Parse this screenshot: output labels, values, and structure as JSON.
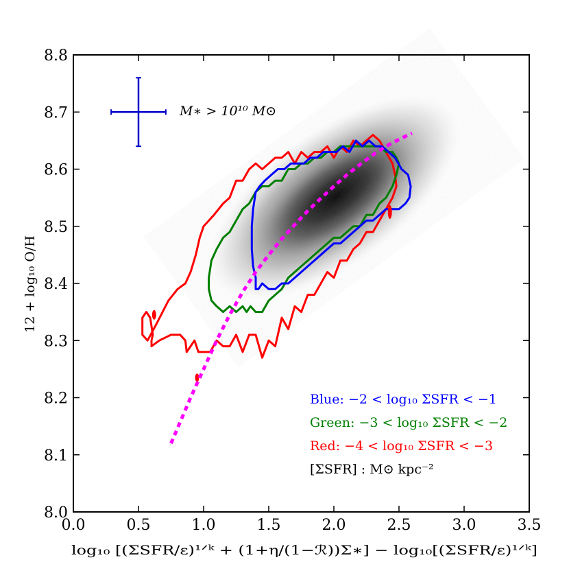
{
  "chart_data": {
    "type": "scatter",
    "title": "",
    "xlabel": "log₁₀ [(ΣSFR/ε)¹ᐟᵏ + (1+η/(1−ℛ))Σ∗] − log₁₀[(ΣSFR/ε)¹ᐟᵏ]",
    "ylabel": "12 + log₁₀ O/H",
    "xlim": [
      0.0,
      3.5
    ],
    "ylim": [
      8.0,
      8.8
    ],
    "x_ticks": [
      0.0,
      0.5,
      1.0,
      1.5,
      2.0,
      2.5,
      3.0,
      3.5
    ],
    "x_tick_labels": [
      "0.0",
      "0.5",
      "1.0",
      "1.5",
      "2.0",
      "2.5",
      "3.0",
      "3.5"
    ],
    "y_ticks": [
      8.0,
      8.1,
      8.2,
      8.3,
      8.4,
      8.5,
      8.6,
      8.7,
      8.8
    ],
    "y_tick_labels": [
      "8.0",
      "8.1",
      "8.2",
      "8.3",
      "8.4",
      "8.5",
      "8.6",
      "8.7",
      "8.8"
    ],
    "grid": false,
    "mass_label": "M∗ > 10¹⁰ M⊙",
    "error_bar": {
      "x": 0.5,
      "y": 8.7,
      "xerr": [
        0.21,
        0.21
      ],
      "yerr": [
        0.06,
        0.06
      ],
      "color": "#0000cc"
    },
    "density": {
      "description_hidden": true,
      "center": [
        2.0,
        8.55
      ],
      "color": "#000000"
    },
    "legend_position": "bottom-right",
    "legend": [
      {
        "prefix": "Blue:",
        "text": "−2 < log₁₀ ΣSFR < −1",
        "color": "#0000ff"
      },
      {
        "prefix": "Green:",
        "text": "−3 < log₁₀ ΣSFR < −2",
        "color": "#007f00"
      },
      {
        "prefix": "Red:",
        "text": "−4 < log₁₀ ΣSFR < −3",
        "color": "#ff0000"
      },
      {
        "prefix": "",
        "text": "[ΣSFR] : M⊙ kpc⁻²",
        "color": "#000000"
      }
    ],
    "model_curve": {
      "color": "#ff00ff",
      "style": "dotted",
      "x": [
        0.75,
        0.9,
        1.0,
        1.1,
        1.2,
        1.3,
        1.4,
        1.5,
        1.6,
        1.7,
        1.8,
        1.9,
        2.0,
        2.1,
        2.2,
        2.3,
        2.4,
        2.5,
        2.6
      ],
      "y": [
        8.12,
        8.2,
        8.25,
        8.3,
        8.345,
        8.385,
        8.42,
        8.45,
        8.478,
        8.503,
        8.527,
        8.549,
        8.57,
        8.59,
        8.608,
        8.625,
        8.64,
        8.652,
        8.663
      ]
    },
    "series": [
      {
        "name": "Red",
        "color": "#ff0000",
        "kind": "contour",
        "x": [
          0.53,
          0.56,
          0.59,
          0.61,
          0.6,
          0.6,
          0.66,
          0.75,
          0.82,
          0.86,
          0.87,
          0.9,
          0.93,
          0.96,
          1.05,
          1.1,
          1.15,
          1.2,
          1.25,
          1.3,
          1.35,
          1.4,
          1.45,
          1.5,
          1.55,
          1.6,
          1.65,
          1.7,
          1.75,
          1.8,
          1.85,
          1.9,
          1.95,
          2.0,
          2.05,
          2.1,
          2.15,
          2.2,
          2.25,
          2.3,
          2.35,
          2.4,
          2.45,
          2.48,
          2.47,
          2.45,
          2.4,
          2.35,
          2.3,
          2.25,
          2.2,
          2.15,
          2.1,
          2.05,
          2.0,
          1.95,
          1.9,
          1.85,
          1.8,
          1.75,
          1.7,
          1.65,
          1.6,
          1.55,
          1.5,
          1.45,
          1.4,
          1.35,
          1.3,
          1.25,
          1.2,
          1.15,
          1.08,
          1.0,
          0.97,
          0.94,
          0.9,
          0.86,
          0.8,
          0.73,
          0.64,
          0.57,
          0.53
        ],
        "y": [
          8.34,
          8.35,
          8.34,
          8.31,
          8.3,
          8.29,
          8.3,
          8.31,
          8.31,
          8.3,
          8.28,
          8.29,
          8.3,
          8.28,
          8.28,
          8.3,
          8.29,
          8.29,
          8.31,
          8.28,
          8.31,
          8.31,
          8.27,
          8.3,
          8.29,
          8.34,
          8.32,
          8.36,
          8.35,
          8.38,
          8.38,
          8.4,
          8.42,
          8.41,
          8.44,
          8.44,
          8.46,
          8.47,
          8.49,
          8.49,
          8.51,
          8.53,
          8.55,
          8.57,
          8.59,
          8.61,
          8.63,
          8.65,
          8.66,
          8.65,
          8.64,
          8.65,
          8.63,
          8.64,
          8.62,
          8.64,
          8.63,
          8.63,
          8.62,
          8.63,
          8.61,
          8.63,
          8.62,
          8.62,
          8.61,
          8.6,
          8.61,
          8.6,
          8.58,
          8.58,
          8.55,
          8.54,
          8.52,
          8.5,
          8.48,
          8.45,
          8.42,
          8.4,
          8.39,
          8.37,
          8.33,
          8.3,
          8.31
        ]
      },
      {
        "name": "Green",
        "color": "#007f00",
        "kind": "contour",
        "x": [
          1.04,
          1.06,
          1.1,
          1.15,
          1.2,
          1.25,
          1.3,
          1.33,
          1.36,
          1.4,
          1.45,
          1.5,
          1.55,
          1.6,
          1.65,
          1.7,
          1.75,
          1.8,
          1.85,
          1.9,
          1.95,
          2.0,
          2.05,
          2.1,
          2.15,
          2.2,
          2.25,
          2.3,
          2.35,
          2.4,
          2.45,
          2.48,
          2.5,
          2.48,
          2.45,
          2.4,
          2.35,
          2.3,
          2.25,
          2.2,
          2.15,
          2.1,
          2.05,
          2.0,
          1.95,
          1.9,
          1.85,
          1.8,
          1.75,
          1.7,
          1.65,
          1.6,
          1.55,
          1.5,
          1.45,
          1.4,
          1.35,
          1.3,
          1.25,
          1.2,
          1.15,
          1.1,
          1.06,
          1.04
        ],
        "y": [
          8.39,
          8.37,
          8.36,
          8.35,
          8.36,
          8.35,
          8.36,
          8.35,
          8.36,
          8.35,
          8.35,
          8.37,
          8.38,
          8.39,
          8.41,
          8.42,
          8.43,
          8.44,
          8.45,
          8.46,
          8.47,
          8.48,
          8.48,
          8.49,
          8.5,
          8.5,
          8.52,
          8.52,
          8.54,
          8.55,
          8.57,
          8.59,
          8.61,
          8.62,
          8.63,
          8.63,
          8.64,
          8.64,
          8.64,
          8.64,
          8.64,
          8.64,
          8.64,
          8.63,
          8.63,
          8.62,
          8.62,
          8.61,
          8.61,
          8.6,
          8.6,
          8.58,
          8.58,
          8.57,
          8.57,
          8.56,
          8.54,
          8.53,
          8.51,
          8.49,
          8.48,
          8.46,
          8.44,
          8.41
        ]
      },
      {
        "name": "Blue",
        "color": "#0000ff",
        "kind": "contour",
        "x": [
          1.4,
          1.42,
          1.45,
          1.5,
          1.55,
          1.6,
          1.65,
          1.7,
          1.75,
          1.8,
          1.85,
          1.9,
          1.95,
          2.0,
          2.05,
          2.1,
          2.15,
          2.2,
          2.25,
          2.3,
          2.35,
          2.4,
          2.45,
          2.5,
          2.55,
          2.58,
          2.59,
          2.57,
          2.52,
          2.47,
          2.42,
          2.37,
          2.32,
          2.27,
          2.22,
          2.17,
          2.12,
          2.07,
          2.02,
          1.97,
          1.92,
          1.87,
          1.82,
          1.77,
          1.72,
          1.67,
          1.62,
          1.57,
          1.52,
          1.47,
          1.43,
          1.4,
          1.38,
          1.37,
          1.37,
          1.38,
          1.4
        ],
        "y": [
          8.39,
          8.39,
          8.4,
          8.39,
          8.39,
          8.4,
          8.4,
          8.41,
          8.42,
          8.43,
          8.44,
          8.45,
          8.46,
          8.47,
          8.47,
          8.48,
          8.49,
          8.5,
          8.51,
          8.51,
          8.52,
          8.53,
          8.53,
          8.53,
          8.54,
          8.55,
          8.57,
          8.59,
          8.6,
          8.62,
          8.63,
          8.64,
          8.64,
          8.65,
          8.64,
          8.65,
          8.63,
          8.64,
          8.63,
          8.63,
          8.63,
          8.62,
          8.62,
          8.61,
          8.61,
          8.61,
          8.6,
          8.6,
          8.59,
          8.58,
          8.57,
          8.56,
          8.53,
          8.5,
          8.46,
          8.43,
          8.41
        ]
      }
    ]
  }
}
